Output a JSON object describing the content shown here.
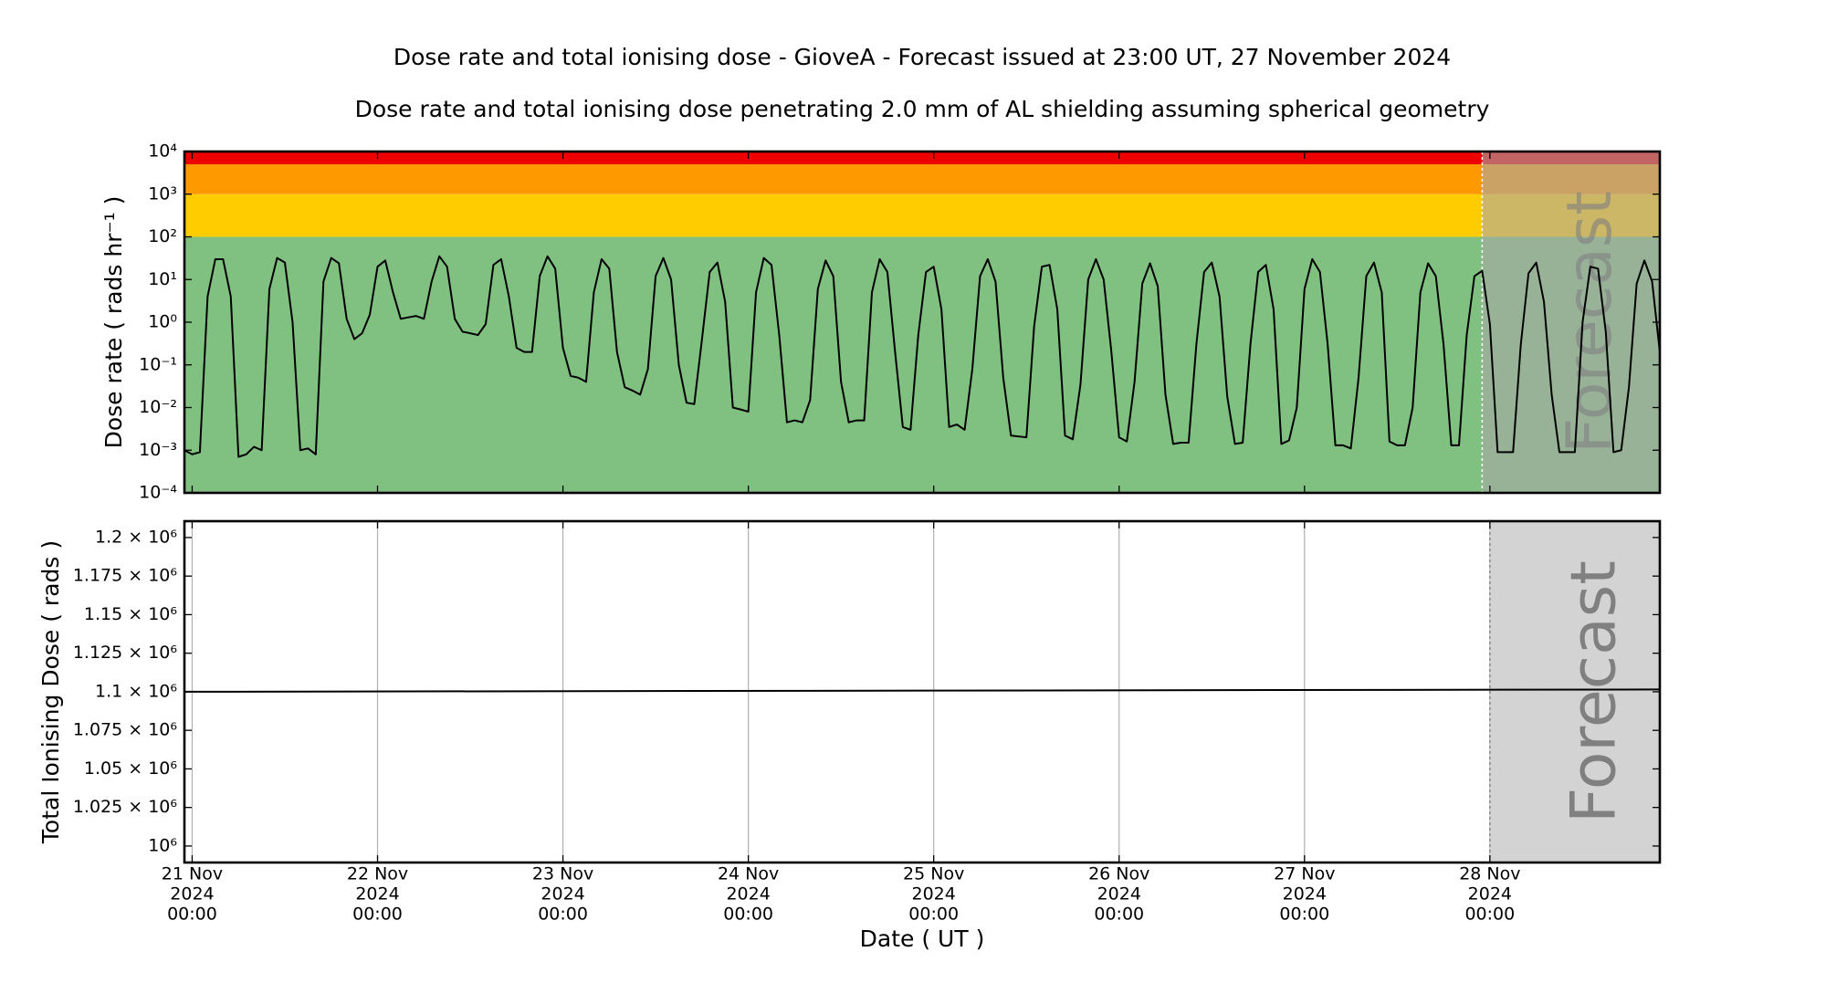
{
  "chart_data": [
    {
      "type": "line",
      "title": "Dose rate and total ionising dose - GioveA - Forecast issued at 23:00 UT, 27 November 2024",
      "subtitle": "Dose rate and total ionising dose penetrating 2.0 mm of AL shielding assuming spherical geometry",
      "y_label": "Dose rate ( rads hr⁻¹ )",
      "yscale": "log",
      "ylim": [
        0.0001,
        10000
      ],
      "yticks": [
        {
          "value": 10000,
          "label": "10⁴"
        },
        {
          "value": 1000,
          "label": "10³"
        },
        {
          "value": 100,
          "label": "10²"
        },
        {
          "value": 10,
          "label": "10¹"
        },
        {
          "value": 1,
          "label": "10⁰"
        },
        {
          "value": 0.1,
          "label": "10⁻¹"
        },
        {
          "value": 0.01,
          "label": "10⁻²"
        },
        {
          "value": 0.001,
          "label": "10⁻³"
        },
        {
          "value": 0.0001,
          "label": "10⁻⁴"
        }
      ],
      "bands": [
        {
          "from": 0.0001,
          "to": 100,
          "color": "#80c080"
        },
        {
          "from": 100,
          "to": 1000,
          "color": "#ffcc00"
        },
        {
          "from": 1000,
          "to": 5000,
          "color": "#ff9900"
        },
        {
          "from": 5000,
          "to": 10000,
          "color": "#ee0000"
        }
      ],
      "forecast_start": "2024-11-27T23:00",
      "forecast_label": "Forecast",
      "forecast_color": "rgba(168,168,168,0.6)",
      "xlim": [
        "2024-11-20T23:00",
        "2024-11-28T22:00"
      ],
      "xticks": [
        "2024-11-21T00:00",
        "2024-11-22T00:00",
        "2024-11-23T00:00",
        "2024-11-24T00:00",
        "2024-11-25T00:00",
        "2024-11-26T00:00",
        "2024-11-27T00:00",
        "2024-11-28T00:00"
      ],
      "x": [
        "2024-11-20T23:00",
        "2024-11-21T00:00",
        "2024-11-21T01:00",
        "2024-11-21T02:00",
        "2024-11-21T03:00",
        "2024-11-21T04:00",
        "2024-11-21T05:00",
        "2024-11-21T06:00",
        "2024-11-21T07:00",
        "2024-11-21T08:00",
        "2024-11-21T09:00",
        "2024-11-21T10:00",
        "2024-11-21T11:00",
        "2024-11-21T12:00",
        "2024-11-21T13:00",
        "2024-11-21T14:00",
        "2024-11-21T15:00",
        "2024-11-21T16:00",
        "2024-11-21T17:00",
        "2024-11-21T18:00",
        "2024-11-21T19:00",
        "2024-11-21T20:00",
        "2024-11-21T21:00",
        "2024-11-21T22:00",
        "2024-11-21T23:00",
        "2024-11-22T00:00",
        "2024-11-22T01:00",
        "2024-11-22T02:00",
        "2024-11-22T03:00",
        "2024-11-22T04:00",
        "2024-11-22T05:00",
        "2024-11-22T06:00",
        "2024-11-22T07:00",
        "2024-11-22T08:00",
        "2024-11-22T09:00",
        "2024-11-22T10:00",
        "2024-11-22T11:00",
        "2024-11-22T12:00",
        "2024-11-22T13:00",
        "2024-11-22T14:00",
        "2024-11-22T15:00",
        "2024-11-22T16:00",
        "2024-11-22T17:00",
        "2024-11-22T18:00",
        "2024-11-22T19:00",
        "2024-11-22T20:00",
        "2024-11-22T21:00",
        "2024-11-22T22:00",
        "2024-11-22T23:00",
        "2024-11-23T00:00",
        "2024-11-23T01:00",
        "2024-11-23T02:00",
        "2024-11-23T03:00",
        "2024-11-23T04:00",
        "2024-11-23T05:00",
        "2024-11-23T06:00",
        "2024-11-23T07:00",
        "2024-11-23T08:00",
        "2024-11-23T09:00",
        "2024-11-23T10:00",
        "2024-11-23T11:00",
        "2024-11-23T12:00",
        "2024-11-23T13:00",
        "2024-11-23T14:00",
        "2024-11-23T15:00",
        "2024-11-23T16:00",
        "2024-11-23T17:00",
        "2024-11-23T18:00",
        "2024-11-23T19:00",
        "2024-11-23T20:00",
        "2024-11-23T21:00",
        "2024-11-23T22:00",
        "2024-11-23T23:00",
        "2024-11-24T00:00",
        "2024-11-24T01:00",
        "2024-11-24T02:00",
        "2024-11-24T03:00",
        "2024-11-24T04:00",
        "2024-11-24T05:00",
        "2024-11-24T06:00",
        "2024-11-24T07:00",
        "2024-11-24T08:00",
        "2024-11-24T09:00",
        "2024-11-24T10:00",
        "2024-11-24T11:00",
        "2024-11-24T12:00",
        "2024-11-24T13:00",
        "2024-11-24T14:00",
        "2024-11-24T15:00",
        "2024-11-24T16:00",
        "2024-11-24T17:00",
        "2024-11-24T18:00",
        "2024-11-24T19:00",
        "2024-11-24T20:00",
        "2024-11-24T21:00",
        "2024-11-24T22:00",
        "2024-11-24T23:00",
        "2024-11-25T00:00",
        "2024-11-25T01:00",
        "2024-11-25T02:00",
        "2024-11-25T03:00",
        "2024-11-25T04:00",
        "2024-11-25T05:00",
        "2024-11-25T06:00",
        "2024-11-25T07:00",
        "2024-11-25T08:00",
        "2024-11-25T09:00",
        "2024-11-25T10:00",
        "2024-11-25T11:00",
        "2024-11-25T12:00",
        "2024-11-25T13:00",
        "2024-11-25T14:00",
        "2024-11-25T15:00",
        "2024-11-25T16:00",
        "2024-11-25T17:00",
        "2024-11-25T18:00",
        "2024-11-25T19:00",
        "2024-11-25T20:00",
        "2024-11-25T21:00",
        "2024-11-25T22:00",
        "2024-11-25T23:00",
        "2024-11-26T00:00",
        "2024-11-26T01:00",
        "2024-11-26T02:00",
        "2024-11-26T03:00",
        "2024-11-26T04:00",
        "2024-11-26T05:00",
        "2024-11-26T06:00",
        "2024-11-26T07:00",
        "2024-11-26T08:00",
        "2024-11-26T09:00",
        "2024-11-26T10:00",
        "2024-11-26T11:00",
        "2024-11-26T12:00",
        "2024-11-26T13:00",
        "2024-11-26T14:00",
        "2024-11-26T15:00",
        "2024-11-26T16:00",
        "2024-11-26T17:00",
        "2024-11-26T18:00",
        "2024-11-26T19:00",
        "2024-11-26T20:00",
        "2024-11-26T21:00",
        "2024-11-26T22:00",
        "2024-11-26T23:00",
        "2024-11-27T00:00",
        "2024-11-27T01:00",
        "2024-11-27T02:00",
        "2024-11-27T03:00",
        "2024-11-27T04:00",
        "2024-11-27T05:00",
        "2024-11-27T06:00",
        "2024-11-27T07:00",
        "2024-11-27T08:00",
        "2024-11-27T09:00",
        "2024-11-27T10:00",
        "2024-11-27T11:00",
        "2024-11-27T12:00",
        "2024-11-27T13:00",
        "2024-11-27T14:00",
        "2024-11-27T15:00",
        "2024-11-27T16:00",
        "2024-11-27T17:00",
        "2024-11-27T18:00",
        "2024-11-27T19:00",
        "2024-11-27T20:00",
        "2024-11-27T21:00",
        "2024-11-27T22:00",
        "2024-11-27T23:00",
        "2024-11-28T00:00",
        "2024-11-28T01:00",
        "2024-11-28T02:00",
        "2024-11-28T03:00",
        "2024-11-28T04:00",
        "2024-11-28T05:00",
        "2024-11-28T06:00",
        "2024-11-28T07:00",
        "2024-11-28T08:00",
        "2024-11-28T09:00",
        "2024-11-28T10:00",
        "2024-11-28T11:00",
        "2024-11-28T12:00",
        "2024-11-28T13:00",
        "2024-11-28T14:00",
        "2024-11-28T15:00",
        "2024-11-28T16:00",
        "2024-11-28T17:00",
        "2024-11-28T18:00",
        "2024-11-28T19:00",
        "2024-11-28T20:00",
        "2024-11-28T21:00",
        "2024-11-28T22:00"
      ],
      "series": [
        {
          "color": "#000000",
          "values": [
            0.001,
            0.0008,
            0.0009,
            4,
            30,
            30,
            4,
            0.0007,
            0.0008,
            0.0012,
            0.001,
            6,
            32,
            25,
            1,
            0.001,
            0.0011,
            0.0008,
            9,
            32,
            24,
            1.2,
            0.4,
            0.55,
            1.5,
            20,
            28,
            5,
            1.2,
            1.3,
            1.4,
            1.2,
            9,
            35,
            20,
            1.2,
            0.6,
            0.55,
            0.5,
            0.9,
            22,
            30,
            4,
            0.25,
            0.2,
            0.2,
            12,
            35,
            18,
            0.25,
            0.055,
            0.05,
            0.04,
            5,
            30,
            18,
            0.2,
            0.03,
            0.025,
            0.02,
            0.08,
            12,
            32,
            10,
            0.1,
            0.013,
            0.012,
            0.4,
            15,
            25,
            3,
            0.01,
            0.009,
            0.008,
            5,
            32,
            22,
            0.5,
            0.0045,
            0.005,
            0.0045,
            0.015,
            6,
            28,
            12,
            0.04,
            0.0045,
            0.005,
            0.005,
            5,
            30,
            15,
            0.2,
            0.0035,
            0.003,
            0.5,
            15,
            20,
            2,
            0.0035,
            0.004,
            0.003,
            0.08,
            12,
            30,
            9,
            0.05,
            0.0022,
            0.0021,
            0.002,
            0.8,
            20,
            22,
            2,
            0.0022,
            0.0018,
            0.035,
            10,
            30,
            10,
            0.2,
            0.002,
            0.0016,
            0.04,
            8,
            24,
            7,
            0.02,
            0.0014,
            0.0015,
            0.0015,
            0.3,
            15,
            25,
            4,
            0.018,
            0.0014,
            0.0015,
            0.3,
            15,
            22,
            2,
            0.0014,
            0.0017,
            0.01,
            6,
            30,
            15,
            0.3,
            0.0013,
            0.0013,
            0.0011,
            0.05,
            12,
            25,
            5,
            0.0016,
            0.0013,
            0.0013,
            0.01,
            5,
            24,
            12,
            0.3,
            0.0013,
            0.0013,
            0.5,
            12,
            16,
            0.9,
            0.0009,
            0.0009,
            0.0009,
            0.3,
            14,
            25,
            3,
            0.02,
            0.0009,
            0.0009,
            0.0009,
            1,
            20,
            18,
            0.6,
            0.0009,
            0.001,
            0.03,
            8,
            28,
            9,
            0.2
          ]
        }
      ]
    },
    {
      "type": "line",
      "y_label": "Total Ionising Dose ( rads )",
      "x_label": "Date ( UT )",
      "ylim": [
        989300,
        1210600
      ],
      "yticks": [
        {
          "value": 1000000,
          "label": "10⁶"
        },
        {
          "value": 1025000,
          "label": "1.025 × 10⁶"
        },
        {
          "value": 1050000,
          "label": "1.05 × 10⁶"
        },
        {
          "value": 1075000,
          "label": "1.075 × 10⁶"
        },
        {
          "value": 1100000,
          "label": "1.1 × 10⁶"
        },
        {
          "value": 1125000,
          "label": "1.125 × 10⁶"
        },
        {
          "value": 1150000,
          "label": "1.15 × 10⁶"
        },
        {
          "value": 1175000,
          "label": "1.175 × 10⁶"
        },
        {
          "value": 1200000,
          "label": "1.2 × 10⁶"
        }
      ],
      "grid": "x",
      "forecast_start": "2024-11-28T00:00",
      "forecast_label": "Forecast",
      "forecast_color": "#d3d3d3",
      "xlim": [
        "2024-11-20T23:00",
        "2024-11-28T22:00"
      ],
      "xticks": [
        {
          "value": "2024-11-21T00:00",
          "label": [
            "21 Nov",
            "2024",
            "00:00"
          ]
        },
        {
          "value": "2024-11-22T00:00",
          "label": [
            "22 Nov",
            "2024",
            "00:00"
          ]
        },
        {
          "value": "2024-11-23T00:00",
          "label": [
            "23 Nov",
            "2024",
            "00:00"
          ]
        },
        {
          "value": "2024-11-24T00:00",
          "label": [
            "24 Nov",
            "2024",
            "00:00"
          ]
        },
        {
          "value": "2024-11-25T00:00",
          "label": [
            "25 Nov",
            "2024",
            "00:00"
          ]
        },
        {
          "value": "2024-11-26T00:00",
          "label": [
            "26 Nov",
            "2024",
            "00:00"
          ]
        },
        {
          "value": "2024-11-27T00:00",
          "label": [
            "27 Nov",
            "2024",
            "00:00"
          ]
        },
        {
          "value": "2024-11-28T00:00",
          "label": [
            "28 Nov",
            "2024",
            "00:00"
          ]
        }
      ],
      "x": [
        "2024-11-20T23:00",
        "2024-11-28T22:00"
      ],
      "series": [
        {
          "color": "#000000",
          "values": [
            1100000,
            1101500
          ]
        }
      ]
    }
  ]
}
